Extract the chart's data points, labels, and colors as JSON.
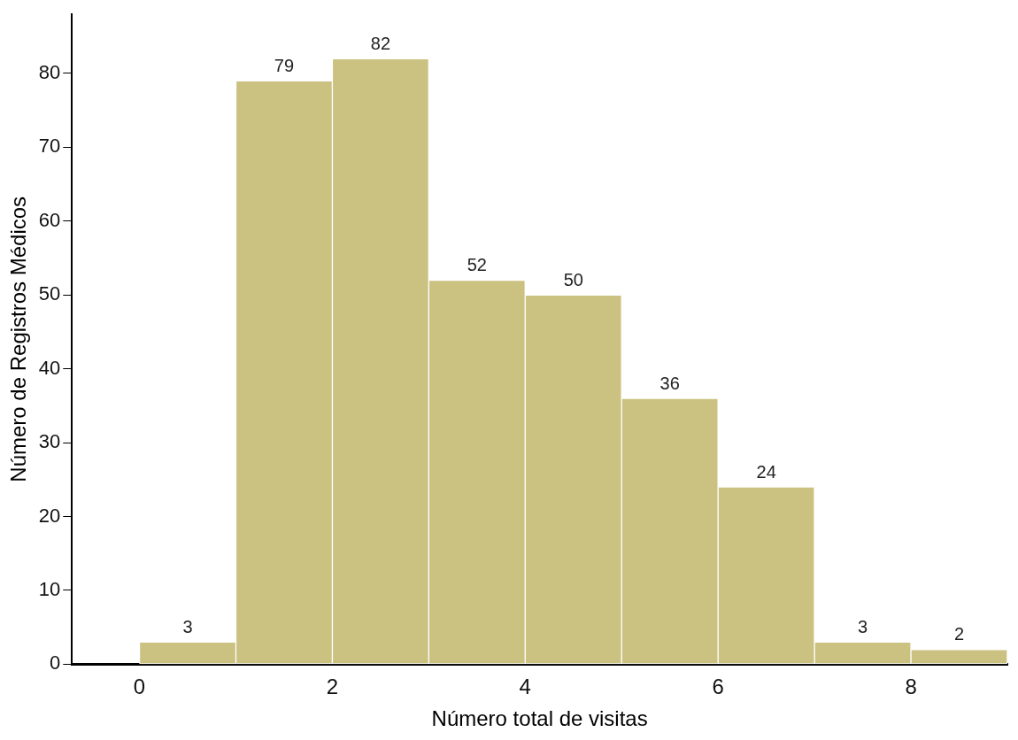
{
  "chart_data": {
    "type": "histogram",
    "xlabel": "Número total de visitas",
    "ylabel": "Número de Registros Médicos",
    "bins": [
      0,
      1,
      2,
      3,
      4,
      5,
      6,
      7,
      8,
      9
    ],
    "values": [
      3,
      79,
      82,
      52,
      50,
      36,
      24,
      3,
      2
    ],
    "color": "#cbc282",
    "xlim": [
      -0.7,
      9
    ],
    "xticks": [
      0,
      2,
      4,
      6,
      8
    ],
    "ylim": [
      0,
      88
    ],
    "yticks": [
      0,
      10,
      20,
      30,
      40,
      50,
      60,
      70,
      80
    ],
    "data_labels": true,
    "grid": false,
    "legend": false
  }
}
